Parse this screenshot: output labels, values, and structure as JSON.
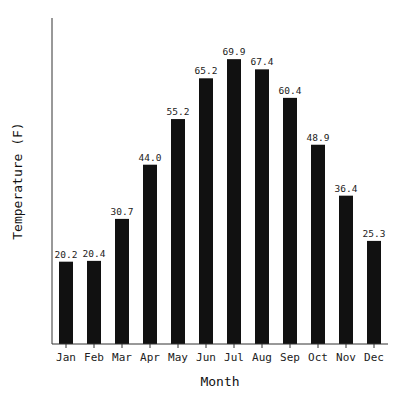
{
  "chart_data": {
    "type": "bar",
    "categories": [
      "Jan",
      "Feb",
      "Mar",
      "Apr",
      "May",
      "Jun",
      "Jul",
      "Aug",
      "Sep",
      "Oct",
      "Nov",
      "Dec"
    ],
    "values": [
      20.2,
      20.4,
      30.7,
      44.0,
      55.2,
      65.2,
      69.9,
      67.4,
      60.4,
      48.9,
      36.4,
      25.3
    ],
    "value_labels": [
      "20.2",
      "20.4",
      "30.7",
      "44.0",
      "55.2",
      "65.2",
      "69.9",
      "67.4",
      "60.4",
      "48.9",
      "36.4",
      "25.3"
    ],
    "data_labels": true,
    "color": "#111111",
    "xlabel": "Month",
    "ylabel": "Temperature (F)",
    "ylim": [
      0,
      80
    ],
    "tick_labels": "x",
    "grid": false
  }
}
